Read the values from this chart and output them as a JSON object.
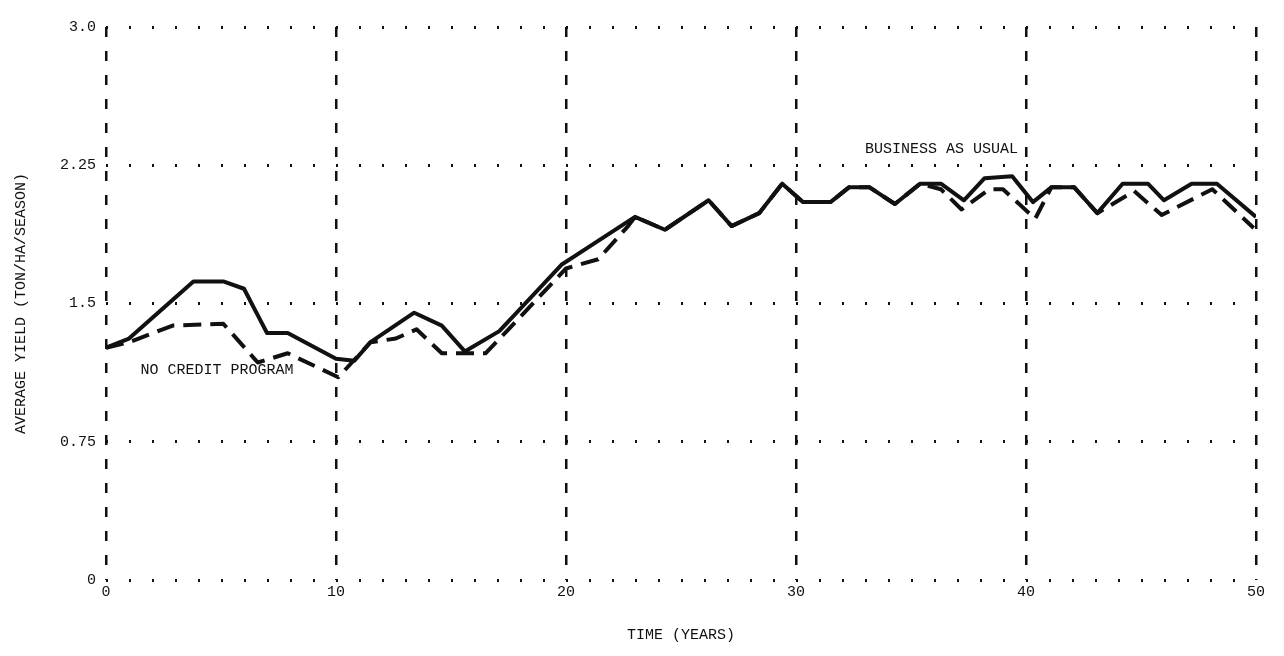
{
  "chart_data": {
    "type": "line",
    "xlabel": "TIME (YEARS)",
    "ylabel": "AVERAGE YIELD (TON/HA/SEASON)",
    "xlim": [
      0,
      50
    ],
    "xticks": [
      0,
      10,
      20,
      30,
      40,
      50
    ],
    "ylim": [
      0,
      3
    ],
    "yticks": [
      0,
      0.75,
      1.5,
      2.25,
      {
        "value": 3,
        "label": "3.0"
      }
    ],
    "grid": true,
    "legend": false,
    "marker": "none",
    "series": [
      {
        "name": "BUSINESS AS USUAL",
        "color": "#111111",
        "line_style": "solid",
        "x": [
          0,
          1,
          3.8,
          5.1,
          6,
          7,
          7.9,
          10,
          10.8,
          11.5,
          13.4,
          14.6,
          15.6,
          17.1,
          19.8,
          23,
          24.3,
          26.2,
          27.2,
          28.4,
          29.4,
          30.3,
          31.5,
          32.3,
          33.2,
          34.3,
          35.4,
          36.3,
          37.3,
          38.2,
          39.4,
          40.3,
          41.1,
          42.1,
          43.1,
          44.2,
          45.3,
          46,
          47.2,
          48.3,
          50
        ],
        "values": [
          1.26,
          1.31,
          1.62,
          1.62,
          1.58,
          1.34,
          1.34,
          1.2,
          1.19,
          1.29,
          1.45,
          1.38,
          1.24,
          1.35,
          1.71,
          1.97,
          1.9,
          2.06,
          1.92,
          1.99,
          2.15,
          2.05,
          2.05,
          2.13,
          2.13,
          2.04,
          2.15,
          2.15,
          2.06,
          2.18,
          2.19,
          2.05,
          2.13,
          2.13,
          1.99,
          2.15,
          2.15,
          2.06,
          2.15,
          2.15,
          1.97
        ]
      },
      {
        "name": "NO CREDIT PROGRAM",
        "color": "#111111",
        "line_style": "dashed",
        "x": [
          0,
          1,
          2.9,
          5.1,
          6.6,
          7.9,
          10.1,
          11.5,
          12.6,
          13.5,
          14.6,
          16.5,
          17.5,
          20,
          21.4,
          22.7,
          23,
          24.3,
          26.2,
          27.2,
          28.4,
          29.4,
          30.3,
          31.5,
          32.3,
          33.2,
          34.3,
          35.4,
          36.3,
          37.2,
          38.4,
          39,
          40.4,
          41.1,
          42.1,
          43.1,
          44.7,
          45.9,
          48.1,
          49.9
        ],
        "values": [
          1.26,
          1.29,
          1.38,
          1.39,
          1.18,
          1.23,
          1.1,
          1.29,
          1.31,
          1.36,
          1.23,
          1.23,
          1.36,
          1.69,
          1.74,
          1.92,
          1.97,
          1.9,
          2.06,
          1.92,
          1.99,
          2.15,
          2.05,
          2.05,
          2.13,
          2.13,
          2.04,
          2.15,
          2.12,
          2.01,
          2.12,
          2.12,
          1.96,
          2.13,
          2.13,
          1.99,
          2.11,
          1.98,
          2.12,
          1.91
        ]
      }
    ]
  }
}
